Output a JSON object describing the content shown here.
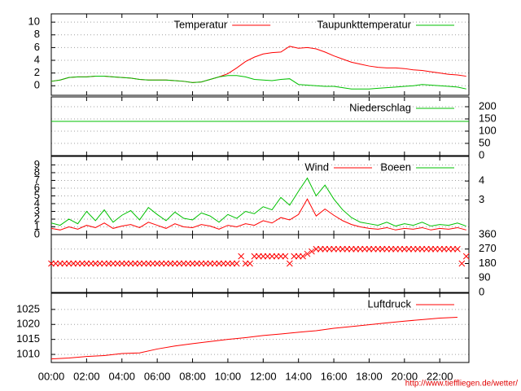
{
  "footer": "http://www.tieffliegen.de/wetter/",
  "chart_data": [
    {
      "type": "line",
      "xlim": [
        0,
        23.65
      ],
      "ylim": [
        -1.5,
        11.3
      ],
      "yticks": [
        0,
        2,
        4,
        6,
        8,
        10
      ],
      "grid": true,
      "x": [
        0,
        0.5,
        1,
        1.5,
        2,
        2.5,
        3,
        3.5,
        4,
        4.5,
        5,
        5.5,
        6,
        6.5,
        7,
        7.5,
        8,
        8.5,
        9,
        9.5,
        10,
        10.5,
        11,
        11.5,
        12,
        12.5,
        13,
        13.5,
        14,
        14.5,
        15,
        15.5,
        16,
        16.5,
        17,
        17.5,
        18,
        18.5,
        19,
        19.5,
        20,
        20.5,
        21,
        21.5,
        22,
        22.5,
        23,
        23.5
      ],
      "series": [
        {
          "name": "Temperatur",
          "color": "#ff0000",
          "values": [
            0.7,
            0.9,
            1.3,
            1.4,
            1.4,
            1.5,
            1.5,
            1.4,
            1.3,
            1.2,
            1.0,
            0.9,
            0.9,
            0.9,
            0.8,
            0.7,
            0.5,
            0.6,
            1.0,
            1.4,
            1.9,
            2.8,
            3.8,
            4.5,
            5.0,
            5.2,
            5.3,
            6.2,
            5.9,
            6.0,
            5.8,
            5.3,
            4.7,
            4.2,
            3.7,
            3.4,
            3.1,
            2.9,
            2.8,
            2.8,
            2.7,
            2.5,
            2.4,
            2.2,
            2.0,
            1.8,
            1.7,
            1.5
          ]
        },
        {
          "name": "Taupunkttemperatur",
          "color": "#00c000",
          "values": [
            0.7,
            0.9,
            1.3,
            1.4,
            1.4,
            1.5,
            1.5,
            1.4,
            1.3,
            1.2,
            1.0,
            0.9,
            0.9,
            0.9,
            0.8,
            0.7,
            0.5,
            0.6,
            1.0,
            1.4,
            1.6,
            1.6,
            1.4,
            1.0,
            0.9,
            0.8,
            1.0,
            1.1,
            0.2,
            0.1,
            0.0,
            -0.1,
            -0.1,
            -0.3,
            -0.5,
            -0.5,
            -0.5,
            -0.4,
            -0.3,
            -0.2,
            -0.1,
            0.0,
            0.2,
            0.1,
            0.0,
            -0.1,
            -0.2,
            -0.5
          ]
        }
      ]
    },
    {
      "type": "line",
      "xlim": [
        0,
        23.65
      ],
      "y2lim": [
        0,
        240
      ],
      "y2ticks": [
        0,
        50,
        100,
        150,
        200
      ],
      "grid": true,
      "x": [
        0,
        23.65
      ],
      "series": [
        {
          "name": "Niederschlag",
          "color": "#00c000",
          "axis": "y2",
          "values": [
            140,
            140
          ]
        }
      ]
    },
    {
      "type": "line",
      "xlim": [
        0,
        23.65
      ],
      "ylim": [
        0,
        10.1
      ],
      "yticks": [
        0,
        1,
        2,
        3,
        4,
        5,
        6,
        7,
        8,
        9
      ],
      "y2lim": [
        1.17,
        5.3
      ],
      "y2ticks": [
        3,
        4
      ],
      "grid": true,
      "x": [
        0,
        0.5,
        1,
        1.5,
        2,
        2.5,
        3,
        3.5,
        4,
        4.5,
        5,
        5.5,
        6,
        6.5,
        7,
        7.5,
        8,
        8.5,
        9,
        9.5,
        10,
        10.5,
        11,
        11.5,
        12,
        12.5,
        13,
        13.5,
        14,
        14.5,
        15,
        15.5,
        16,
        16.5,
        17,
        17.5,
        18,
        18.5,
        19,
        19.5,
        20,
        20.5,
        21,
        21.5,
        22,
        22.5,
        23,
        23.5
      ],
      "series": [
        {
          "name": "Wind",
          "color": "#ff0000",
          "values": [
            0.8,
            0.6,
            1.0,
            0.7,
            1.2,
            0.9,
            1.5,
            0.8,
            1.1,
            1.3,
            0.9,
            1.6,
            1.2,
            0.8,
            1.4,
            1.0,
            0.9,
            1.3,
            1.1,
            0.7,
            1.2,
            1.0,
            1.4,
            1.2,
            1.8,
            1.5,
            2.2,
            1.9,
            2.6,
            4.6,
            2.4,
            3.3,
            2.5,
            1.8,
            1.3,
            1.0,
            0.8,
            0.7,
            0.9,
            0.6,
            0.8,
            0.7,
            0.9,
            0.6,
            0.8,
            0.7,
            0.9,
            0.6
          ]
        },
        {
          "name": "Boeen",
          "color": "#00c000",
          "values": [
            1.5,
            1.2,
            2.0,
            1.4,
            3.0,
            1.8,
            3.2,
            1.6,
            2.5,
            3.1,
            1.9,
            3.5,
            2.6,
            1.8,
            2.9,
            2.1,
            1.9,
            2.8,
            2.4,
            1.6,
            2.6,
            2.1,
            3.0,
            2.7,
            3.6,
            3.2,
            4.8,
            3.8,
            5.6,
            7.3,
            5.0,
            6.4,
            4.6,
            3.2,
            2.2,
            1.6,
            1.4,
            1.2,
            1.6,
            1.1,
            1.4,
            1.2,
            1.6,
            1.1,
            1.3,
            1.2,
            1.5,
            1.1
          ]
        }
      ]
    },
    {
      "type": "scatter",
      "xlim": [
        0,
        23.65
      ],
      "y2lim": [
        0,
        360
      ],
      "y2ticks": [
        0,
        90,
        180,
        270,
        360
      ],
      "grid": true,
      "x": [
        0,
        0.25,
        0.5,
        0.75,
        1,
        1.25,
        1.5,
        1.75,
        2,
        2.25,
        2.5,
        2.75,
        3,
        3.25,
        3.5,
        3.75,
        4,
        4.25,
        4.5,
        4.75,
        5,
        5.25,
        5.5,
        5.75,
        6,
        6.25,
        6.5,
        6.75,
        7,
        7.25,
        7.5,
        7.75,
        8,
        8.25,
        8.5,
        8.75,
        9,
        9.25,
        9.5,
        9.75,
        10,
        10.25,
        10.5,
        10.75,
        11,
        11.25,
        11.5,
        11.75,
        12,
        12.25,
        12.5,
        12.75,
        13,
        13.25,
        13.5,
        13.75,
        14,
        14.25,
        14.5,
        14.75,
        15,
        15.25,
        15.5,
        15.75,
        16,
        16.25,
        16.5,
        16.75,
        17,
        17.25,
        17.5,
        17.75,
        18,
        18.25,
        18.5,
        18.75,
        19,
        19.25,
        19.5,
        19.75,
        20,
        20.25,
        20.5,
        20.75,
        21,
        21.25,
        21.5,
        21.75,
        22,
        22.25,
        22.5,
        22.75,
        23,
        23.25,
        23.5
      ],
      "series": [
        {
          "color": "#ff0000",
          "axis": "y2",
          "values": [
            180,
            180,
            180,
            180,
            180,
            180,
            180,
            180,
            180,
            180,
            180,
            180,
            180,
            180,
            180,
            180,
            180,
            180,
            180,
            180,
            180,
            180,
            180,
            180,
            180,
            180,
            180,
            180,
            180,
            180,
            180,
            180,
            180,
            180,
            180,
            180,
            180,
            180,
            180,
            180,
            180,
            180,
            180,
            225,
            180,
            180,
            225,
            225,
            225,
            225,
            225,
            225,
            225,
            225,
            180,
            225,
            225,
            225,
            240,
            255,
            270,
            270,
            270,
            270,
            270,
            270,
            270,
            270,
            270,
            270,
            270,
            270,
            270,
            270,
            270,
            270,
            270,
            270,
            270,
            270,
            270,
            270,
            270,
            270,
            270,
            270,
            270,
            270,
            270,
            270,
            270,
            270,
            270,
            180,
            225
          ]
        }
      ]
    },
    {
      "type": "line",
      "xlim": [
        0,
        23.65
      ],
      "ylim": [
        1007.3,
        1030.4
      ],
      "yticks": [
        1010,
        1015,
        1020,
        1025
      ],
      "grid": true,
      "xticks": [
        {
          "value": 0,
          "label": "00:00"
        },
        {
          "value": 2,
          "label": "02:00"
        },
        {
          "value": 4,
          "label": "04:00"
        },
        {
          "value": 6,
          "label": "06:00"
        },
        {
          "value": 8,
          "label": "08:00"
        },
        {
          "value": 10,
          "label": "10:00"
        },
        {
          "value": 12,
          "label": "12:00"
        },
        {
          "value": 14,
          "label": "14:00"
        },
        {
          "value": 16,
          "label": "16:00"
        },
        {
          "value": 18,
          "label": "18:00"
        },
        {
          "value": 20,
          "label": "20:00"
        },
        {
          "value": 22,
          "label": "22:00"
        }
      ],
      "x": [
        0,
        1,
        2,
        3,
        4,
        5,
        6,
        7,
        8,
        9,
        10,
        11,
        12,
        13,
        14,
        15,
        16,
        17,
        18,
        19,
        20,
        21,
        22,
        23
      ],
      "series": [
        {
          "name": "Luftdruck",
          "color": "#ff0000",
          "values": [
            1008.5,
            1008.8,
            1009.3,
            1009.6,
            1010.3,
            1010.5,
            1011.8,
            1012.8,
            1013.6,
            1014.3,
            1015.0,
            1015.6,
            1016.3,
            1016.8,
            1017.4,
            1017.9,
            1018.7,
            1019.3,
            1019.9,
            1020.5,
            1021.1,
            1021.6,
            1022.1,
            1022.4
          ]
        }
      ]
    }
  ]
}
